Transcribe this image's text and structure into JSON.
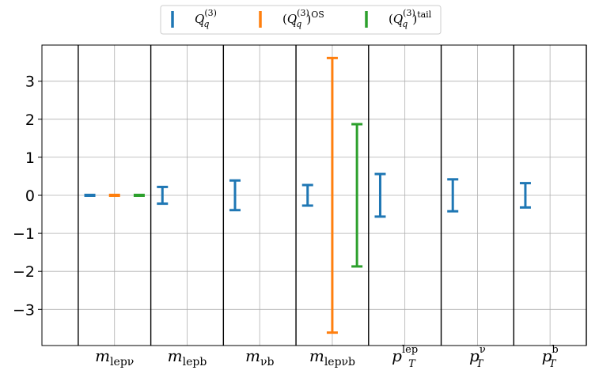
{
  "chart_data": {
    "type": "errorbar",
    "title": "",
    "xlabel": "",
    "ylabel": "",
    "ylim": [
      -3.95,
      3.95
    ],
    "yticks": [
      -3,
      -2,
      -1,
      0,
      1,
      2,
      3
    ],
    "ytick_labels": [
      "−3",
      "−2",
      "−1",
      "0",
      "1",
      "2",
      "3"
    ],
    "grid": true,
    "legend_position": "top-center",
    "categories": [
      {
        "base": "m",
        "sub": "lepν",
        "sup": ""
      },
      {
        "base": "m",
        "sub": "lepb",
        "sup": ""
      },
      {
        "base": "m",
        "sub": "νb",
        "sup": ""
      },
      {
        "base": "m",
        "sub": "lepνb",
        "sup": ""
      },
      {
        "base": "p",
        "sub": "T",
        "sup": "lep"
      },
      {
        "base": "p",
        "sub": "T",
        "sup": "ν"
      },
      {
        "base": "p",
        "sub": "T",
        "sup": "b"
      }
    ],
    "series": [
      {
        "name": "Q_lq^(3)",
        "legend": {
          "pre": "",
          "base": "Q",
          "sub": "lq",
          "sup": "(3)",
          "post": "",
          "postsup": ""
        },
        "color": "#1f77b4",
        "points": [
          {
            "category": 0,
            "center": 0.0,
            "half_width": 0.0
          },
          {
            "category": 1,
            "center": 0.0,
            "half_width": 0.22
          },
          {
            "category": 2,
            "center": 0.0,
            "half_width": 0.39
          },
          {
            "category": 3,
            "center": 0.0,
            "half_width": 0.27
          },
          {
            "category": 4,
            "center": 0.0,
            "half_width": 0.56
          },
          {
            "category": 5,
            "center": 0.0,
            "half_width": 0.42
          },
          {
            "category": 6,
            "center": 0.0,
            "half_width": 0.32
          }
        ]
      },
      {
        "name": "(Q_lq^(3))^OS",
        "legend": {
          "pre": "(",
          "base": "Q",
          "sub": "lq",
          "sup": "(3)",
          "post": ")",
          "postsup": "OS"
        },
        "color": "#ff7f0e",
        "points": [
          {
            "category": 0,
            "center": 0.0,
            "half_width": 0.0
          },
          {
            "category": 3,
            "center": 0.0,
            "half_width": 3.61
          }
        ]
      },
      {
        "name": "(Q_lq^(3))^tail",
        "legend": {
          "pre": "(",
          "base": "Q",
          "sub": "lq",
          "sup": "(3)",
          "post": ")",
          "postsup": "tail"
        },
        "color": "#2ca02c",
        "points": [
          {
            "category": 0,
            "center": 0.0,
            "half_width": 0.0
          },
          {
            "category": 3,
            "center": 0.0,
            "half_width": 1.87
          }
        ]
      }
    ]
  }
}
